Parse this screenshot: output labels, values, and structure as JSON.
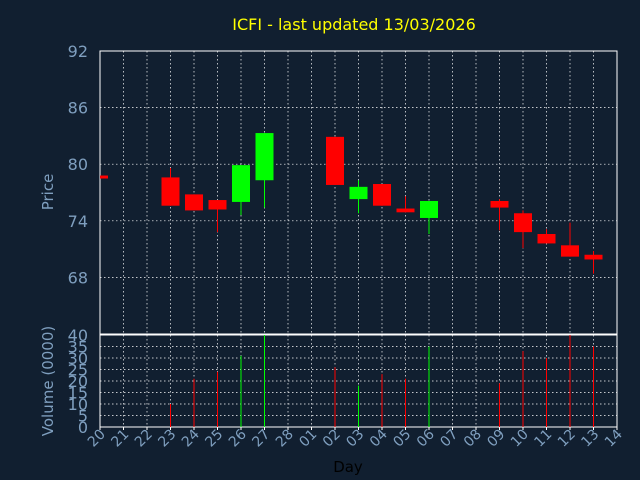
{
  "chart_data": {
    "type": "candlestick",
    "title": "ICFI - last updated 13/03/2026",
    "xlabel": "Day",
    "price_panel": {
      "ylabel": "Price",
      "ylim": [
        62,
        92
      ],
      "y_ticks": [
        "92",
        "86",
        "80",
        "74",
        "68"
      ],
      "grid": true
    },
    "volume_panel": {
      "ylabel": "Volume (0000)",
      "ylim": [
        0,
        40
      ],
      "y_ticks": [
        "40",
        "35",
        "30",
        "25",
        "20",
        "15",
        "10",
        "5",
        "0"
      ],
      "grid": true
    },
    "x_tick_labels": [
      "20",
      "21",
      "22",
      "23",
      "24",
      "25",
      "26",
      "27",
      "28",
      "01",
      "02",
      "03",
      "04",
      "05",
      "06",
      "07",
      "08",
      "09",
      "10",
      "11",
      "12",
      "13",
      "14"
    ],
    "series": [
      {
        "day": "20",
        "open": 78.8,
        "high": 78.8,
        "low": 78.6,
        "close": 78.6,
        "volume": 0
      },
      {
        "day": "23",
        "open": 78.6,
        "high": 79.6,
        "low": 75.6,
        "close": 75.6,
        "volume": 10
      },
      {
        "day": "24",
        "open": 76.8,
        "high": 76.8,
        "low": 75.1,
        "close": 75.1,
        "volume": 21
      },
      {
        "day": "25",
        "open": 76.2,
        "high": 76.2,
        "low": 72.8,
        "close": 75.2,
        "volume": 24
      },
      {
        "day": "26",
        "open": 76.0,
        "high": 79.9,
        "low": 74.6,
        "close": 79.9,
        "volume": 31
      },
      {
        "day": "27",
        "open": 78.3,
        "high": 83.3,
        "low": 75.4,
        "close": 83.3,
        "volume": 40
      },
      {
        "day": "02",
        "open": 82.9,
        "high": 82.9,
        "low": 77.8,
        "close": 77.8,
        "volume": 26
      },
      {
        "day": "03",
        "open": 76.3,
        "high": 78.3,
        "low": 74.8,
        "close": 77.6,
        "volume": 18
      },
      {
        "day": "04",
        "open": 77.9,
        "high": 77.9,
        "low": 75.6,
        "close": 75.6,
        "volume": 23
      },
      {
        "day": "05",
        "open": 75.3,
        "high": 76.6,
        "low": 74.9,
        "close": 74.9,
        "volume": 21
      },
      {
        "day": "06",
        "open": 74.3,
        "high": 76.1,
        "low": 72.6,
        "close": 76.1,
        "volume": 35
      },
      {
        "day": "09",
        "open": 76.1,
        "high": 76.3,
        "low": 73.0,
        "close": 75.4,
        "volume": 19
      },
      {
        "day": "10",
        "open": 74.8,
        "high": 75.1,
        "low": 71.1,
        "close": 72.8,
        "volume": 33
      },
      {
        "day": "11",
        "open": 72.6,
        "high": 73.1,
        "low": 71.6,
        "close": 71.6,
        "volume": 30
      },
      {
        "day": "12",
        "open": 71.4,
        "high": 73.8,
        "low": 70.2,
        "close": 70.2,
        "volume": 40
      },
      {
        "day": "13",
        "open": 70.4,
        "high": 70.8,
        "low": 68.4,
        "close": 69.9,
        "volume": 35
      }
    ]
  },
  "colors": {
    "background": "#111f30",
    "title": "#ffff00",
    "axis_text": "#7f9fbf",
    "grid": "#ffffff",
    "up": "#00ff00",
    "down": "#ff0000"
  }
}
